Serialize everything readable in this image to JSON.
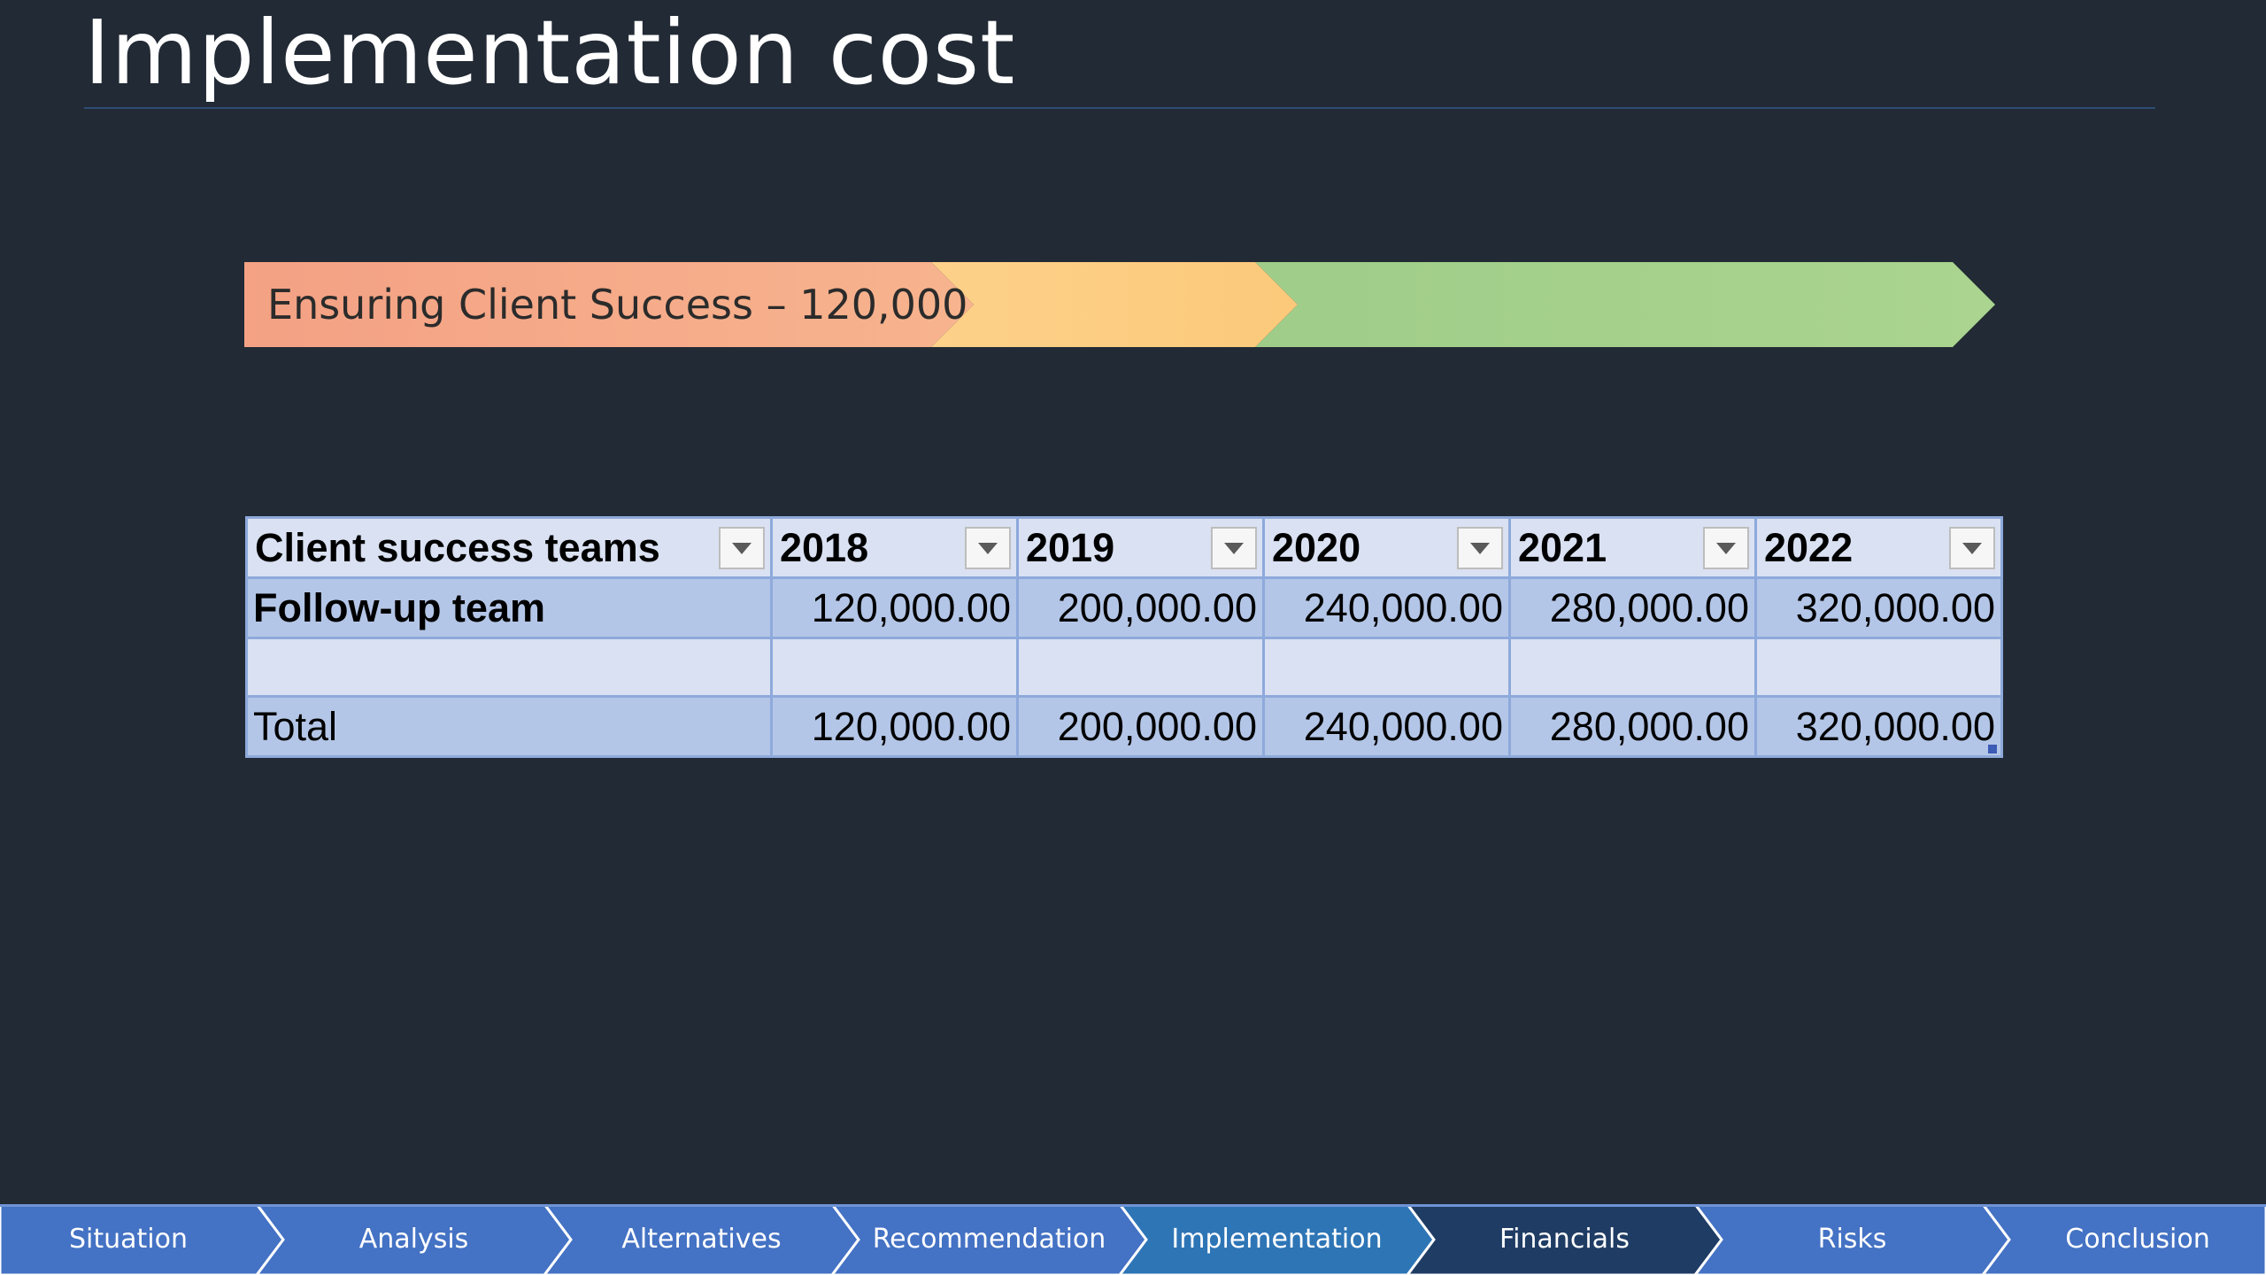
{
  "slide": {
    "title": "Implementation cost",
    "arrow_label": "Ensuring Client Success – 120,000",
    "arrow_colors": [
      "#f4ab8a",
      "#fccf7f",
      "#a9d18e"
    ]
  },
  "table": {
    "headers": [
      "Client success teams",
      "2018",
      "2019",
      "2020",
      "2021",
      "2022"
    ],
    "rows": [
      {
        "name": "Follow-up team",
        "values": [
          "120,000.00",
          "200,000.00",
          "240,000.00",
          "280,000.00",
          "320,000.00"
        ]
      },
      {
        "name": "",
        "values": [
          "",
          "",
          "",
          "",
          ""
        ]
      },
      {
        "name": "Total",
        "values": [
          "120,000.00",
          "200,000.00",
          "240,000.00",
          "280,000.00",
          "320,000.00"
        ]
      }
    ],
    "filter_icon": "dropdown-arrow-icon"
  },
  "nav": {
    "items": [
      "Situation",
      "Analysis",
      "Alternatives",
      "Recommendation",
      "Implementation",
      "Financials",
      "Risks",
      "Conclusion"
    ],
    "active_index": 5,
    "colors": {
      "default": "#4472c4",
      "highlight": "#2e75b6",
      "active": "#1f3c64"
    }
  }
}
